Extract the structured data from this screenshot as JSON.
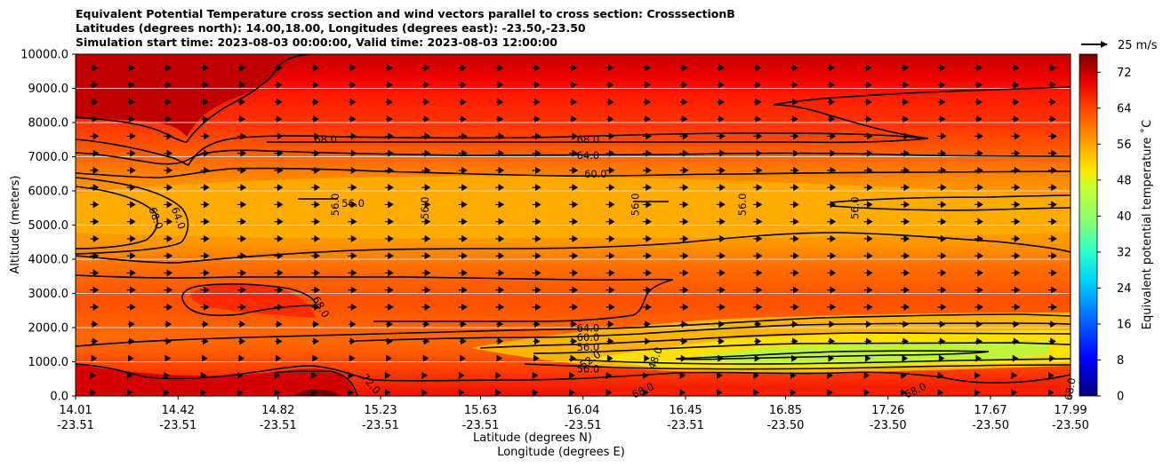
{
  "chart_data": {
    "type": "heatmap",
    "title_lines": [
      "Equivalent Potential Temperature cross section and wind vectors parallel to cross section: CrosssectionB",
      "Latitudes (degrees north): 14.00,18.00, Longitudes (degrees east): -23.50,-23.50",
      "Simulation start time: 2023-08-03 00:00:00, Valid time: 2023-08-03 12:00:00"
    ],
    "ylabel": "Altitude (meters)",
    "xlabel_lines": [
      "Latitude (degrees N)",
      "Longitude (degrees E)"
    ],
    "ylim": [
      0,
      10000
    ],
    "yticks": [
      0,
      1000,
      2000,
      3000,
      4000,
      5000,
      6000,
      7000,
      8000,
      9000,
      10000
    ],
    "ytick_labels": [
      "0.0",
      "1000.0",
      "2000.0",
      "3000.0",
      "4000.0",
      "5000.0",
      "6000.0",
      "7000.0",
      "8000.0",
      "9000.0",
      "10000.0"
    ],
    "xlim": [
      14.01,
      17.99
    ],
    "xticks": [
      {
        "lat": "14.01",
        "lon": "-23.51",
        "v": 14.01
      },
      {
        "lat": "14.42",
        "lon": "-23.51",
        "v": 14.42
      },
      {
        "lat": "14.82",
        "lon": "-23.51",
        "v": 14.82
      },
      {
        "lat": "15.23",
        "lon": "-23.51",
        "v": 15.23
      },
      {
        "lat": "15.63",
        "lon": "-23.51",
        "v": 15.63
      },
      {
        "lat": "16.04",
        "lon": "-23.51",
        "v": 16.04
      },
      {
        "lat": "16.45",
        "lon": "-23.51",
        "v": 16.45
      },
      {
        "lat": "16.85",
        "lon": "-23.50",
        "v": 16.85
      },
      {
        "lat": "17.26",
        "lon": "-23.50",
        "v": 17.26
      },
      {
        "lat": "17.67",
        "lon": "-23.50",
        "v": 17.67
      },
      {
        "lat": "17.99",
        "lon": "-23.50",
        "v": 17.99
      }
    ],
    "colorbar": {
      "label": "Equivalent potential temperature ˚C",
      "min": 0,
      "max": 76,
      "ticks": [
        "0",
        "8",
        "16",
        "24",
        "32",
        "40",
        "48",
        "56",
        "64",
        "72"
      ],
      "tick_values": [
        0,
        8,
        16,
        24,
        32,
        40,
        48,
        56,
        64,
        72
      ]
    },
    "quiver_key": {
      "label": "25 m/s"
    },
    "contour_labels": [
      {
        "text": "68.0",
        "x": 15.01,
        "y": 7500,
        "rot": 0
      },
      {
        "text": "68.0",
        "x": 16.06,
        "y": 7500,
        "rot": 0
      },
      {
        "text": "64.0",
        "x": 16.06,
        "y": 7020,
        "rot": 0
      },
      {
        "text": "60.0",
        "x": 16.09,
        "y": 6480,
        "rot": 0
      },
      {
        "text": "56.0",
        "x": 15.12,
        "y": 5620,
        "rot": 0
      },
      {
        "text": "56.0",
        "x": 15.05,
        "y": 5600,
        "rot": -90
      },
      {
        "text": "56.0",
        "x": 15.41,
        "y": 5500,
        "rot": -90
      },
      {
        "text": "56.0",
        "x": 16.25,
        "y": 5600,
        "rot": -90
      },
      {
        "text": "56.0",
        "x": 16.68,
        "y": 5600,
        "rot": -90
      },
      {
        "text": "56.0",
        "x": 17.13,
        "y": 5500,
        "rot": -90
      },
      {
        "text": "68.0",
        "x": 14.33,
        "y": 5200,
        "rot": 70
      },
      {
        "text": "64.0",
        "x": 14.42,
        "y": 5200,
        "rot": 70
      },
      {
        "text": "68.0",
        "x": 14.99,
        "y": 2600,
        "rot": 60
      },
      {
        "text": "64.0",
        "x": 16.06,
        "y": 1980,
        "rot": 0
      },
      {
        "text": "60.0",
        "x": 16.06,
        "y": 1700,
        "rot": 0
      },
      {
        "text": "56.0",
        "x": 16.06,
        "y": 1420,
        "rot": 0
      },
      {
        "text": "52.0",
        "x": 16.07,
        "y": 1050,
        "rot": -35
      },
      {
        "text": "48.0",
        "x": 16.33,
        "y": 1100,
        "rot": -70
      },
      {
        "text": "56.0",
        "x": 16.06,
        "y": 780,
        "rot": 0
      },
      {
        "text": "68.0",
        "x": 16.28,
        "y": 150,
        "rot": -25
      },
      {
        "text": "72.0",
        "x": 15.19,
        "y": 350,
        "rot": 50
      },
      {
        "text": "68.0",
        "x": 17.37,
        "y": 150,
        "rot": -25
      },
      {
        "text": "68.0",
        "x": 17.99,
        "y": 200,
        "rot": -80
      }
    ]
  }
}
